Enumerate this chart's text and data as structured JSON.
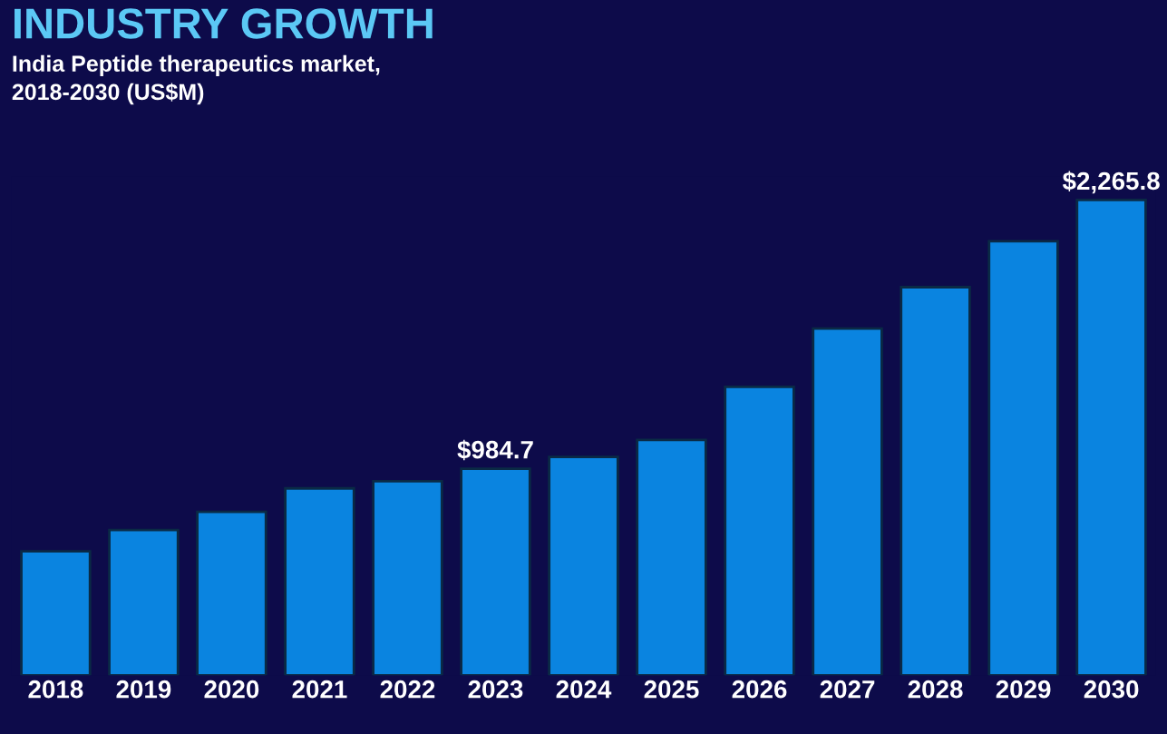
{
  "chart_data": {
    "type": "bar",
    "title": "INDUSTRY GROWTH",
    "subtitle": "India Peptide therapeutics market,\n2018-2030 (US$M)",
    "categories": [
      "2018",
      "2019",
      "2020",
      "2021",
      "2022",
      "2023",
      "2024",
      "2025",
      "2026",
      "2027",
      "2028",
      "2029",
      "2030"
    ],
    "values": [
      591,
      693,
      779,
      891,
      925,
      984.7,
      1041,
      1122,
      1375,
      1653,
      1850,
      2069,
      2265.8
    ],
    "value_labels": [
      null,
      null,
      null,
      null,
      null,
      "$984.7",
      null,
      null,
      null,
      null,
      null,
      null,
      "$2,265.8"
    ],
    "color": "#0a84e0",
    "tick_labels": "x",
    "grid": false,
    "legend": false
  }
}
